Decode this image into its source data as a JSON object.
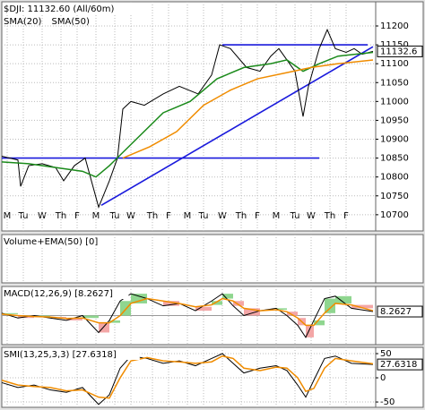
{
  "chart_data": [
    {
      "type": "line",
      "title": "$DJI: 11132.60 (All/60m)",
      "xlim": [
        0,
        139
      ],
      "ylim": [
        10657,
        11264
      ],
      "yticks": [
        10700,
        10750,
        10800,
        10850,
        10900,
        10950,
        11000,
        11050,
        11100,
        11150,
        11200
      ],
      "xticks": [
        {
          "value": 2,
          "label": "M"
        },
        {
          "value": 8,
          "label": "Tu"
        },
        {
          "value": 15,
          "label": "W"
        },
        {
          "value": 22,
          "label": "Th"
        },
        {
          "value": 28,
          "label": "F"
        },
        {
          "value": 35,
          "label": "M"
        },
        {
          "value": 42,
          "label": "Tu"
        },
        {
          "value": 48,
          "label": "W"
        },
        {
          "value": 56,
          "label": "Th"
        },
        {
          "value": 62,
          "label": "F"
        },
        {
          "value": 69,
          "label": "M"
        },
        {
          "value": 75,
          "label": "Tu"
        },
        {
          "value": 82,
          "label": "W"
        },
        {
          "value": 89,
          "label": "Th"
        },
        {
          "value": 95,
          "label": "F"
        },
        {
          "value": 102,
          "label": "M"
        },
        {
          "value": 109,
          "label": "Tu"
        },
        {
          "value": 115,
          "label": "W"
        },
        {
          "value": 122,
          "label": "Th"
        },
        {
          "value": 128,
          "label": "F"
        }
      ],
      "grid": true,
      "series": [
        {
          "color": "#000000",
          "x": [
            0,
            3,
            6,
            7,
            10,
            15,
            20,
            23,
            27,
            31,
            36,
            40,
            43,
            45,
            48,
            53,
            60,
            66,
            73,
            78,
            81,
            85,
            91,
            96,
            100,
            103,
            106,
            109,
            112,
            114,
            118,
            121,
            124,
            128,
            131,
            134,
            138
          ],
          "values": [
            10855,
            10850,
            10845,
            10775,
            10830,
            10835,
            10825,
            10790,
            10830,
            10850,
            10720,
            10790,
            10850,
            10980,
            11000,
            10990,
            11020,
            11040,
            11020,
            11070,
            11150,
            11140,
            11090,
            11080,
            11120,
            11140,
            11110,
            11080,
            10960,
            11040,
            11140,
            11190,
            11140,
            11130,
            11140,
            11125,
            11132.6
          ]
        },
        {
          "name": "SMA(20)",
          "color": "#1a8a1a",
          "x": [
            0,
            10,
            20,
            30,
            35,
            40,
            50,
            60,
            70,
            80,
            90,
            100,
            106,
            112,
            118,
            125,
            138
          ],
          "values": [
            10840,
            10835,
            10825,
            10815,
            10800,
            10830,
            10900,
            10970,
            11000,
            11060,
            11090,
            11100,
            11110,
            11080,
            11100,
            11120,
            11130
          ]
        },
        {
          "name": "SMA(50)",
          "color": "#f08c00",
          "x": [
            45,
            55,
            65,
            75,
            85,
            95,
            105,
            115,
            125,
            138
          ],
          "values": [
            10850,
            10880,
            10920,
            10990,
            11030,
            11060,
            11075,
            11090,
            11100,
            11110
          ]
        }
      ],
      "lines": [
        {
          "color": "#1a1adc",
          "x": [
            0,
            118
          ],
          "values": [
            10850,
            10850
          ]
        },
        {
          "color": "#1a1adc",
          "x": [
            82,
            136
          ],
          "values": [
            11150,
            11150
          ]
        },
        {
          "color": "#1a1adc",
          "x": [
            37,
            138
          ],
          "values": [
            10725,
            11145
          ]
        }
      ]
    },
    {
      "type": "bar",
      "title": "Volume+EMA(50) [0]"
    },
    {
      "type": "macd",
      "title": "MACD(12,26,9) [8.2627]",
      "ylim": [
        -60,
        60
      ],
      "series": [
        {
          "color": "#000000",
          "x": [
            0,
            6,
            12,
            18,
            24,
            30,
            36,
            40,
            44,
            48,
            54,
            60,
            66,
            72,
            78,
            82,
            86,
            90,
            96,
            102,
            106,
            110,
            113,
            116,
            120,
            124,
            130,
            138
          ],
          "values": [
            5,
            -5,
            0,
            -5,
            -10,
            0,
            -35,
            -10,
            30,
            45,
            35,
            20,
            25,
            10,
            30,
            45,
            20,
            0,
            10,
            15,
            0,
            -20,
            -45,
            -10,
            35,
            40,
            15,
            8.2627
          ]
        },
        {
          "color": "#f08c00",
          "x": [
            0,
            6,
            12,
            18,
            24,
            30,
            36,
            40,
            44,
            48,
            54,
            60,
            66,
            72,
            78,
            82,
            86,
            90,
            96,
            102,
            106,
            110,
            113,
            116,
            120,
            124,
            130,
            138
          ],
          "values": [
            3,
            0,
            -2,
            -3,
            -6,
            -5,
            -15,
            -15,
            0,
            25,
            35,
            30,
            25,
            18,
            22,
            35,
            30,
            15,
            10,
            12,
            8,
            -5,
            -20,
            -20,
            5,
            25,
            22,
            10
          ]
        }
      ],
      "up_color": "#8fd68f",
      "down_color": "#f3a6a6"
    },
    {
      "type": "line",
      "title": "SMI(13,25,3,3) [27.6318]",
      "ylim": [
        -61,
        63
      ],
      "yticks": [
        -50,
        0,
        50
      ],
      "series": [
        {
          "color": "#000000",
          "x": [
            0,
            6,
            12,
            18,
            24,
            30,
            36,
            40,
            44,
            48,
            54,
            60,
            66,
            72,
            78,
            82,
            86,
            90,
            96,
            102,
            106,
            110,
            113,
            116,
            120,
            124,
            130,
            138
          ],
          "values": [
            -10,
            -20,
            -15,
            -25,
            -30,
            -20,
            -55,
            -35,
            20,
            45,
            40,
            30,
            35,
            25,
            40,
            50,
            30,
            10,
            20,
            25,
            15,
            -15,
            -40,
            -5,
            40,
            45,
            30,
            27.6318
          ]
        },
        {
          "color": "#f08c00",
          "x": [
            0,
            6,
            12,
            18,
            24,
            30,
            36,
            40,
            44,
            48,
            54,
            60,
            66,
            72,
            78,
            82,
            86,
            90,
            96,
            102,
            106,
            110,
            113,
            116,
            120,
            124,
            130,
            138
          ],
          "values": [
            -5,
            -15,
            -18,
            -20,
            -27,
            -25,
            -40,
            -42,
            0,
            35,
            42,
            35,
            33,
            30,
            33,
            45,
            40,
            20,
            15,
            22,
            20,
            0,
            -28,
            -22,
            20,
            40,
            35,
            29
          ]
        }
      ]
    }
  ]
}
